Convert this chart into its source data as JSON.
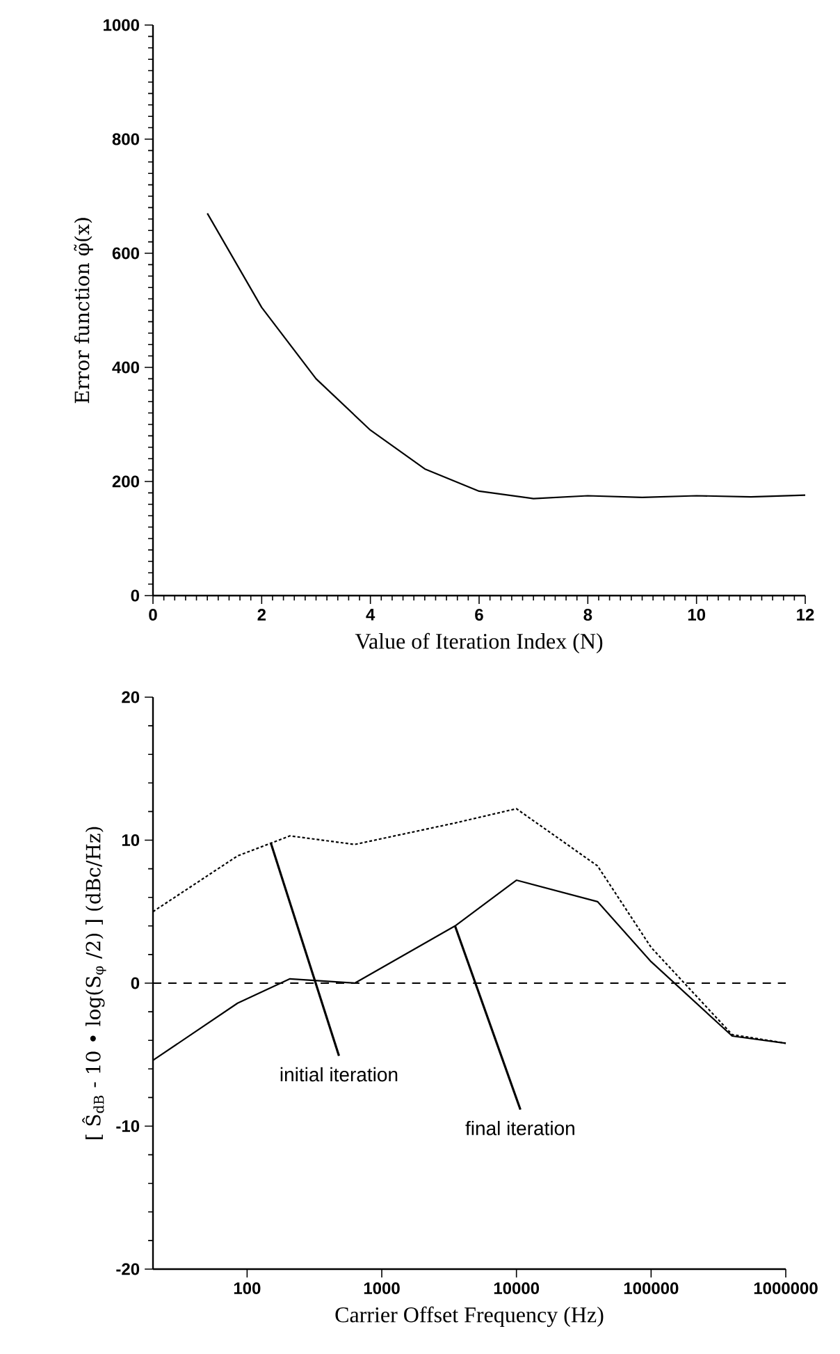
{
  "chart_data": [
    {
      "type": "line",
      "xlabel": "Value of Iteration Index (N)",
      "ylabel": "Error function φ̃(x)",
      "x": [
        1,
        2,
        3,
        4,
        5,
        6,
        7,
        8,
        9,
        10,
        11,
        12
      ],
      "color": "#000000",
      "values": [
        670,
        505,
        380,
        290,
        222,
        183,
        170,
        175,
        172,
        175,
        173,
        176
      ],
      "xlim": [
        0,
        12
      ],
      "ylim": [
        0,
        1000
      ],
      "xticks": [
        0,
        2,
        4,
        6,
        8,
        10,
        12
      ],
      "yticks": [
        0,
        200,
        400,
        600,
        800,
        1000
      ]
    },
    {
      "type": "line",
      "xlabel": "Carrier Offset Frequency (Hz)",
      "ylabel": "[ Ŝ$_{dB}$ - 10 • log(S$_{φ}$ /2) ]     (dBc/Hz)",
      "log": "x",
      "x": [
        20,
        85,
        208,
        630,
        3500,
        10000,
        40000,
        100000,
        400000,
        1000000
      ],
      "series": [
        {
          "color": "#000000",
          "line_style": "dotted",
          "values": [
            5.0,
            8.9,
            10.3,
            9.7,
            11.2,
            12.2,
            8.2,
            2.5,
            -3.6,
            -4.2
          ]
        },
        {
          "color": "#000000",
          "line_style": "solid",
          "values": [
            -5.4,
            -1.4,
            0.3,
            0.0,
            4.0,
            7.2,
            5.7,
            1.5,
            -3.7,
            -4.2
          ]
        }
      ],
      "ref_lines": [
        {
          "axis": "y",
          "value": 0,
          "line_style": "dashed"
        }
      ],
      "annotations": [
        {
          "text": "initial iteration",
          "x": 150,
          "y": 9.8
        },
        {
          "text": "final iteration",
          "x": 3500,
          "y": 4.0
        }
      ],
      "xlim": [
        20,
        1000000
      ],
      "ylim": [
        -20,
        20
      ],
      "xticks": [
        100,
        1000,
        10000,
        100000,
        1000000
      ],
      "yticks": [
        -20,
        -10,
        0,
        10,
        20
      ]
    }
  ]
}
